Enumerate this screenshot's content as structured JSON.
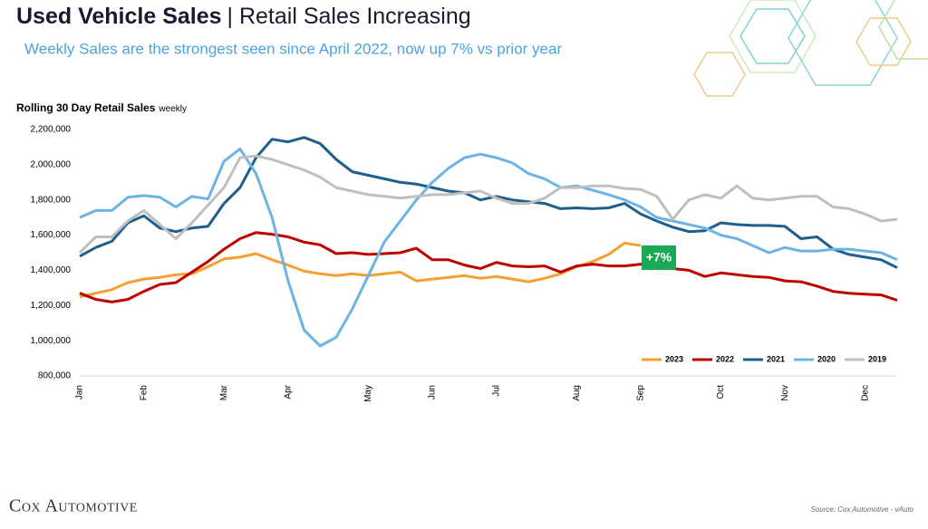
{
  "header": {
    "title": "Used Vehicle Sales",
    "title_rest": "| Retail Sales Increasing",
    "subtitle": "Weekly Sales are the strongest seen since April 2022, now up 7% vs prior year"
  },
  "footer": {
    "logo": "Cox Automotive",
    "source": "Source: Cox Automotive - vAuto"
  },
  "chart_data": {
    "type": "line",
    "title": "Rolling 30 Day Retail Sales",
    "title_note": "weekly",
    "categories": [
      "Jan",
      null,
      null,
      null,
      "Feb",
      null,
      null,
      null,
      null,
      "Mar",
      null,
      null,
      null,
      "Apr",
      null,
      null,
      null,
      null,
      "May",
      null,
      null,
      null,
      "Jun",
      null,
      null,
      null,
      "Jul",
      null,
      null,
      null,
      null,
      "Aug",
      null,
      null,
      null,
      "Sep",
      null,
      null,
      null,
      null,
      "Oct",
      null,
      null,
      null,
      "Nov",
      null,
      null,
      null,
      null,
      "Dec",
      null,
      null
    ],
    "ylim": [
      800000,
      2200000
    ],
    "yticks": [
      {
        "value": 800000,
        "label": "800,000"
      },
      {
        "value": 1000000,
        "label": "1,000,000"
      },
      {
        "value": 1200000,
        "label": "1,200,000"
      },
      {
        "value": 1400000,
        "label": "1,400,000"
      },
      {
        "value": 1600000,
        "label": "1,600,000"
      },
      {
        "value": 1800000,
        "label": "1,800,000"
      },
      {
        "value": 2000000,
        "label": "2,000,000"
      },
      {
        "value": 2200000,
        "label": "2,200,000"
      }
    ],
    "grid": false,
    "legend": "bottom-right",
    "annotation": "+7%",
    "series": [
      {
        "name": "2023",
        "color": "#f5a030",
        "values": [
          1250000,
          1270000,
          1290000,
          1330000,
          1350000,
          1360000,
          1375000,
          1380000,
          1420000,
          1465000,
          1475000,
          1495000,
          1460000,
          1430000,
          1395000,
          1380000,
          1370000,
          1380000,
          1370000,
          1380000,
          1390000,
          1340000,
          1350000,
          1360000,
          1370000,
          1355000,
          1365000,
          1350000,
          1335000,
          1355000,
          1380000,
          1420000,
          1450000,
          1490000,
          1555000,
          1540000,
          null,
          null,
          null,
          null,
          null,
          null,
          null,
          null,
          null,
          null,
          null,
          null,
          null,
          null,
          null,
          null
        ]
      },
      {
        "name": "2022",
        "color": "#c00000",
        "values": [
          1270000,
          1235000,
          1220000,
          1235000,
          1280000,
          1320000,
          1330000,
          1390000,
          1450000,
          1520000,
          1580000,
          1615000,
          1605000,
          1590000,
          1560000,
          1545000,
          1495000,
          1500000,
          1490000,
          1495000,
          1500000,
          1525000,
          1460000,
          1460000,
          1430000,
          1410000,
          1445000,
          1425000,
          1420000,
          1425000,
          1390000,
          1425000,
          1435000,
          1425000,
          1425000,
          1435000,
          1410000,
          1410000,
          1400000,
          1365000,
          1385000,
          1375000,
          1365000,
          1360000,
          1340000,
          1335000,
          1310000,
          1280000,
          1270000,
          1265000,
          1260000,
          1230000
        ]
      },
      {
        "name": "2021",
        "color": "#1f5f8b",
        "values": [
          1480000,
          1530000,
          1565000,
          1670000,
          1710000,
          1640000,
          1620000,
          1640000,
          1650000,
          1780000,
          1870000,
          2040000,
          2145000,
          2130000,
          2155000,
          2120000,
          2030000,
          1960000,
          1940000,
          1920000,
          1900000,
          1890000,
          1870000,
          1850000,
          1840000,
          1800000,
          1820000,
          1800000,
          1790000,
          1780000,
          1750000,
          1755000,
          1750000,
          1755000,
          1780000,
          1720000,
          1680000,
          1645000,
          1620000,
          1625000,
          1670000,
          1660000,
          1655000,
          1655000,
          1650000,
          1580000,
          1590000,
          1520000,
          1490000,
          1475000,
          1460000,
          1415000
        ]
      },
      {
        "name": "2020",
        "color": "#6cb4e4",
        "values": [
          1700000,
          1740000,
          1740000,
          1815000,
          1825000,
          1815000,
          1760000,
          1820000,
          1805000,
          2020000,
          2090000,
          1950000,
          1700000,
          1340000,
          1060000,
          970000,
          1020000,
          1180000,
          1370000,
          1560000,
          1680000,
          1800000,
          1900000,
          1980000,
          2040000,
          2060000,
          2040000,
          2010000,
          1950000,
          1920000,
          1870000,
          1880000,
          1855000,
          1830000,
          1800000,
          1760000,
          1700000,
          1680000,
          1660000,
          1640000,
          1600000,
          1580000,
          1540000,
          1500000,
          1530000,
          1510000,
          1510000,
          1520000,
          1520000,
          1510000,
          1500000,
          1460000
        ]
      },
      {
        "name": "2019",
        "color": "#bfbfbf",
        "values": [
          1500000,
          1590000,
          1590000,
          1680000,
          1740000,
          1660000,
          1580000,
          1670000,
          1770000,
          1870000,
          2040000,
          2050000,
          2030000,
          2000000,
          1970000,
          1930000,
          1870000,
          1850000,
          1830000,
          1820000,
          1810000,
          1820000,
          1830000,
          1830000,
          1840000,
          1850000,
          1810000,
          1780000,
          1780000,
          1810000,
          1870000,
          1870000,
          1880000,
          1880000,
          1865000,
          1860000,
          1820000,
          1690000,
          1800000,
          1830000,
          1810000,
          1880000,
          1810000,
          1800000,
          1810000,
          1820000,
          1820000,
          1760000,
          1750000,
          1720000,
          1680000,
          1690000
        ]
      }
    ]
  }
}
